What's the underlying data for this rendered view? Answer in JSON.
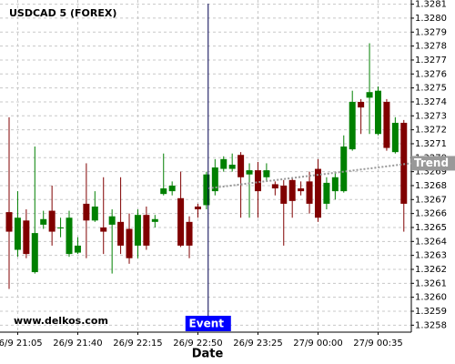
{
  "chart_data": {
    "type": "candlestick",
    "title": "USDCAD 5 (FOREX)",
    "watermark": "www.delkos.com",
    "xlabel": "Date",
    "event_label": "Event",
    "trend": {
      "name": "Trend",
      "values": [
        1.32678,
        1.32696
      ],
      "color": "#999999"
    },
    "up_color": "#008000",
    "down_color": "#800000",
    "grid": true,
    "categories": [
      null,
      "26/9 21:05",
      null,
      null,
      null,
      null,
      null,
      null,
      "26/9 21:40",
      null,
      null,
      null,
      null,
      null,
      null,
      "26/9 22:15",
      null,
      null,
      null,
      null,
      null,
      null,
      "26/9 22:50",
      null,
      null,
      null,
      null,
      null,
      null,
      "26/9 23:25",
      null,
      null,
      null,
      null,
      null,
      null,
      "27/9 00:00",
      null,
      null,
      null,
      null,
      null,
      null,
      "27/9 00:35",
      null,
      null,
      null
    ],
    "open": [
      1.32661,
      1.32634,
      1.32655,
      1.32618,
      1.32652,
      1.32662,
      1.3265,
      1.32631,
      1.32632,
      1.32667,
      1.32655,
      1.3265,
      1.32652,
      1.32654,
      1.32649,
      1.32637,
      1.32659,
      1.32654,
      1.32674,
      1.32676,
      1.32671,
      1.32654,
      1.32665,
      1.32666,
      1.32676,
      1.32692,
      1.32692,
      1.32702,
      1.32688,
      1.32691,
      1.32686,
      1.32681,
      1.3268,
      1.32684,
      1.32678,
      1.32683,
      1.32692,
      1.32667,
      1.32676,
      1.32676,
      1.32706,
      1.3274,
      1.32743,
      1.32717,
      1.3274,
      1.32704,
      1.32725
    ],
    "high": [
      1.32729,
      1.32676,
      1.32663,
      1.32708,
      1.32662,
      1.3268,
      1.32657,
      1.32662,
      1.32643,
      1.32696,
      1.32676,
      1.32686,
      1.32663,
      1.32686,
      1.3266,
      1.32663,
      1.32665,
      1.32659,
      1.32703,
      1.32683,
      1.3269,
      1.32658,
      1.32667,
      1.3269,
      1.32699,
      1.32701,
      1.32703,
      1.32704,
      1.32696,
      1.32697,
      1.32696,
      1.32683,
      1.32684,
      1.32686,
      1.32683,
      1.3269,
      1.32699,
      1.32686,
      1.3269,
      1.32716,
      1.32748,
      1.32742,
      1.32782,
      1.32751,
      1.32742,
      1.32729,
      1.32727
    ],
    "low": [
      1.32606,
      1.32629,
      1.32628,
      1.32617,
      1.32649,
      1.32637,
      1.32643,
      1.32629,
      1.32631,
      1.32628,
      1.32654,
      1.32631,
      1.32617,
      1.32631,
      1.32624,
      1.32628,
      1.32634,
      1.3265,
      1.32673,
      1.32673,
      1.32636,
      1.32628,
      1.32657,
      1.32663,
      1.32673,
      1.3269,
      1.3269,
      1.32657,
      1.32657,
      1.32657,
      1.32683,
      1.32673,
      1.32637,
      1.32657,
      1.32673,
      1.3266,
      1.32654,
      1.32663,
      1.3267,
      1.32675,
      1.32705,
      1.32717,
      1.32717,
      1.32716,
      1.32705,
      1.32703,
      1.32647
    ],
    "close": [
      1.32647,
      1.32657,
      1.32631,
      1.32646,
      1.32656,
      1.32647,
      1.3265,
      1.32657,
      1.32637,
      1.32655,
      1.32665,
      1.32647,
      1.32658,
      1.32637,
      1.32628,
      1.32659,
      1.32637,
      1.32656,
      1.32678,
      1.3268,
      1.32637,
      1.32637,
      1.32663,
      1.32688,
      1.32693,
      1.32699,
      1.32695,
      1.32686,
      1.32691,
      1.32676,
      1.32691,
      1.32678,
      1.32667,
      1.32669,
      1.32676,
      1.32667,
      1.32657,
      1.32682,
      1.32686,
      1.32708,
      1.3274,
      1.32736,
      1.32747,
      1.32748,
      1.32707,
      1.32725,
      1.32667
    ],
    "ylim": [
      1.32575,
      1.32813
    ],
    "yticks": [
      1.3258,
      1.3259,
      {
        "value": 1.326,
        "label": "1.3260"
      },
      1.3261,
      1.3262,
      1.3263,
      1.3264,
      1.3265,
      1.3266,
      1.3267,
      1.3268,
      1.3269,
      {
        "value": 1.327,
        "label": "1.3270"
      },
      1.3271,
      1.3272,
      1.3273,
      1.3274,
      1.3275,
      1.3276,
      1.3277,
      1.3278,
      1.3279,
      {
        "value": 1.328,
        "label": "1.3280"
      },
      1.3281
    ]
  }
}
